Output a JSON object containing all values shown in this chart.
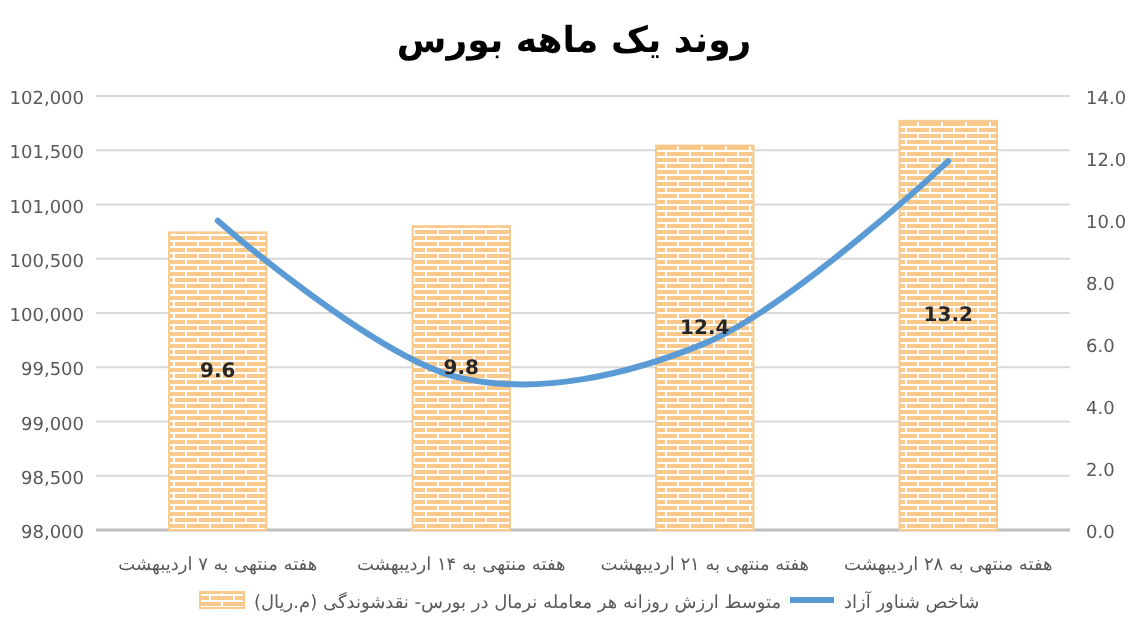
{
  "chart_data": {
    "type": "bar",
    "title": "روند یک ماهه بورس",
    "categories": [
      "هفته منتهی به ۷ اردیبهشت",
      "هفته منتهی به ۱۴ اردیبهشت",
      "هفته منتهی به ۲۱ اردیبهشت",
      "هفته منتهی به ۲۸ اردیبهشت"
    ],
    "series": [
      {
        "name": "متوسط ارزش روزانه هر معامله نرمال در بورس- نقدشوندگی (م.ریال)",
        "axis": "y2",
        "color": "#f8c98a",
        "values": [
          9.6,
          9.8,
          12.4,
          13.2
        ],
        "value_labels": [
          "9.6",
          "9.8",
          "12.4",
          "13.2"
        ]
      },
      {
        "name": "شاخص شناور آزاد",
        "type": "line",
        "color": "#5b9bd5",
        "values": [
          100850,
          99400,
          99720,
          101400
        ]
      }
    ],
    "ylim": [
      98000,
      102000
    ],
    "yticks": [
      {
        "value": 98000,
        "label": "98,000"
      },
      {
        "value": 98500,
        "label": "98,500"
      },
      {
        "value": 99000,
        "label": "99,000"
      },
      {
        "value": 99500,
        "label": "99,500"
      },
      {
        "value": 100000,
        "label": "100,000"
      },
      {
        "value": 100500,
        "label": "100,500"
      },
      {
        "value": 101000,
        "label": "101,000"
      },
      {
        "value": 101500,
        "label": "101,500"
      },
      {
        "value": 102000,
        "label": "102,000"
      }
    ],
    "y2lim": [
      0,
      14
    ],
    "y2ticks": [
      {
        "value": 0,
        "label": "0.0"
      },
      {
        "value": 2,
        "label": "2.0"
      },
      {
        "value": 4,
        "label": "4.0"
      },
      {
        "value": 6,
        "label": "6.0"
      },
      {
        "value": 8,
        "label": "8.0"
      },
      {
        "value": 10,
        "label": "10.0"
      },
      {
        "value": 12,
        "label": "12.0"
      },
      {
        "value": 14,
        "label": "14.0"
      }
    ],
    "grid": "y",
    "legend": "bottom",
    "marker": "none",
    "line_style": "solid"
  }
}
